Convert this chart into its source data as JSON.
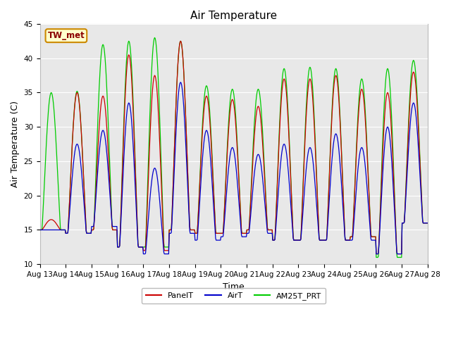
{
  "title": "Air Temperature",
  "ylabel": "Air Temperature (C)",
  "xlabel": "Time",
  "ylim": [
    10,
    45
  ],
  "color_panel": "#cc0000",
  "color_air": "#0000cc",
  "color_am25": "#00cc00",
  "legend_labels": [
    "PanelT",
    "AirT",
    "AM25T_PRT"
  ],
  "annotation_text": "TW_met",
  "bg_color": "#e8e8e8",
  "title_fontsize": 11,
  "label_fontsize": 9,
  "tick_fontsize": 7.5,
  "legend_fontsize": 8,
  "x_tick_labels": [
    "Aug 13",
    "Aug 14",
    "Aug 15",
    "Aug 16",
    "Aug 17",
    "Aug 18",
    "Aug 19",
    "Aug 20",
    "Aug 21",
    "Aug 22",
    "Aug 23",
    "Aug 24",
    "Aug 25",
    "Aug 26",
    "Aug 27",
    "Aug 28"
  ],
  "peak_am25": [
    35.0,
    35.2,
    42.0,
    42.5,
    43.0,
    42.5,
    36.0,
    35.5,
    35.5,
    38.5,
    38.7,
    38.5,
    37.0,
    38.5,
    39.7
  ],
  "peak_panel": [
    16.5,
    35.0,
    34.5,
    40.5,
    37.5,
    42.5,
    34.5,
    34.0,
    33.0,
    37.0,
    37.0,
    37.5,
    35.5,
    35.0,
    38.0
  ],
  "peak_air": [
    15.0,
    27.5,
    29.5,
    33.5,
    24.0,
    36.5,
    29.5,
    27.0,
    26.0,
    27.5,
    27.0,
    29.0,
    27.0,
    30.0,
    33.5
  ],
  "min_am25": [
    15.0,
    14.5,
    15.0,
    12.5,
    12.5,
    15.0,
    14.5,
    14.5,
    15.0,
    13.5,
    13.5,
    13.5,
    14.0,
    11.0,
    16.0
  ],
  "min_panel": [
    15.0,
    14.5,
    15.0,
    12.5,
    12.0,
    15.0,
    14.5,
    14.5,
    15.0,
    13.5,
    13.5,
    13.5,
    14.0,
    11.5,
    16.0
  ],
  "min_air": [
    15.0,
    14.5,
    15.5,
    12.5,
    11.5,
    14.5,
    13.5,
    14.0,
    14.5,
    13.5,
    13.5,
    13.5,
    13.5,
    11.5,
    16.0
  ]
}
